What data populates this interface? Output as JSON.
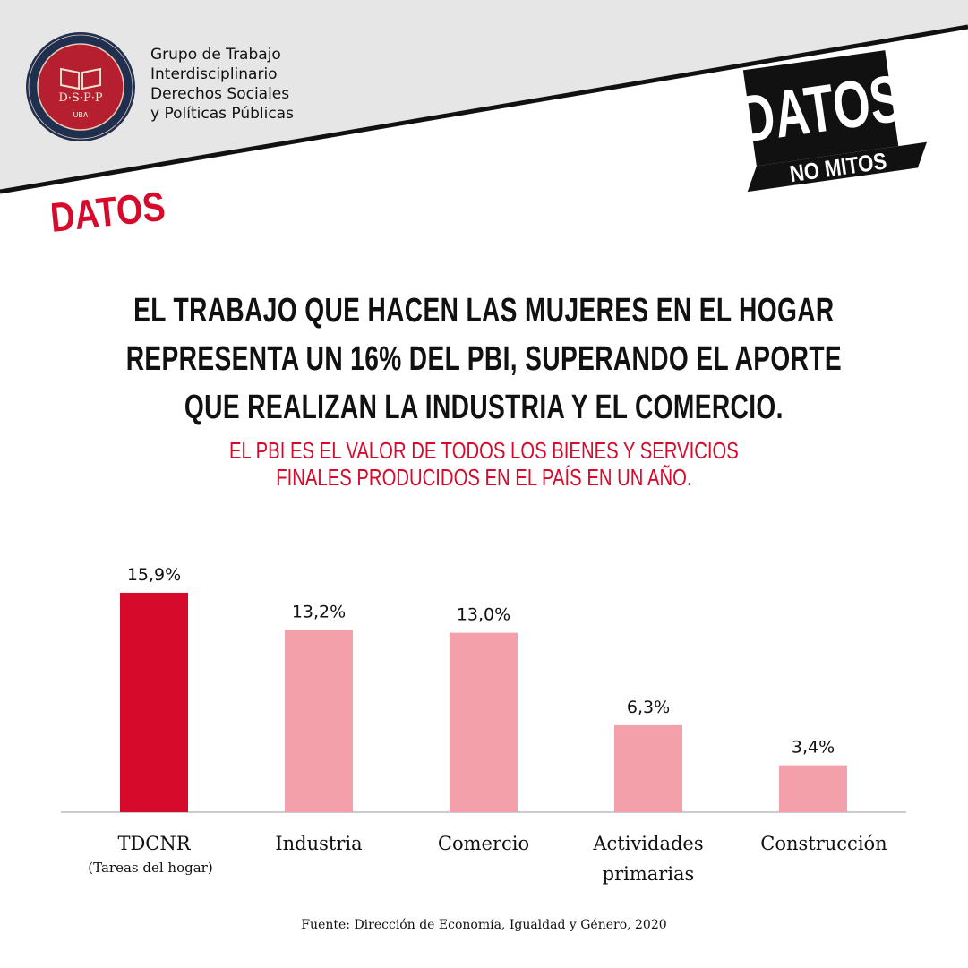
{
  "organization": {
    "logo_text": "D·S·P·P",
    "logo_sub": "UBA",
    "name_lines": [
      "Grupo de Trabajo",
      "Interdisciplinario",
      "Derechos Sociales",
      "y Políticas Públicas"
    ]
  },
  "brand": {
    "top": "DATOS",
    "bottom": "NO MITOS"
  },
  "section_label": "DATOS",
  "headline_lines": [
    "EL TRABAJO QUE HACEN LAS MUJERES EN EL HOGAR",
    "REPRESENTA UN 16% DEL PBI, SUPERANDO EL APORTE",
    "QUE REALIZAN LA INDUSTRIA Y EL COMERCIO."
  ],
  "subhead_lines": [
    "EL PBI ES EL VALOR DE TODOS LOS BIENES Y SERVICIOS",
    "FINALES PRODUCIDOS EN EL PAÍS EN UN AÑO."
  ],
  "chart_data": {
    "type": "bar",
    "categories": [
      "TDCNR",
      "Industria",
      "Comercio",
      "Actividades primarias",
      "Construcción"
    ],
    "category_label_lines": [
      [
        "TDCNR"
      ],
      [
        "Industria"
      ],
      [
        "Comercio"
      ],
      [
        "Actividades",
        "primarias"
      ],
      [
        "Construcción"
      ]
    ],
    "category_notes": [
      "(Tareas del hogar)",
      "",
      "",
      "",
      ""
    ],
    "values": [
      15.9,
      13.2,
      13.0,
      6.3,
      3.4
    ],
    "value_labels": [
      "15,9%",
      "13,2%",
      "13,0%",
      "6,3%",
      "3,4%"
    ],
    "highlight_index": 0,
    "colors": {
      "highlight": "#d60a2b",
      "normal": "#f4a0ab",
      "axis": "#bbbbbb"
    },
    "ylim": [
      0,
      17
    ]
  },
  "source": "Fuente: Dirección de Economía, Igualdad y Género, 2020",
  "colors": {
    "accent": "#d60a2b",
    "band": "#e6e6e6"
  }
}
